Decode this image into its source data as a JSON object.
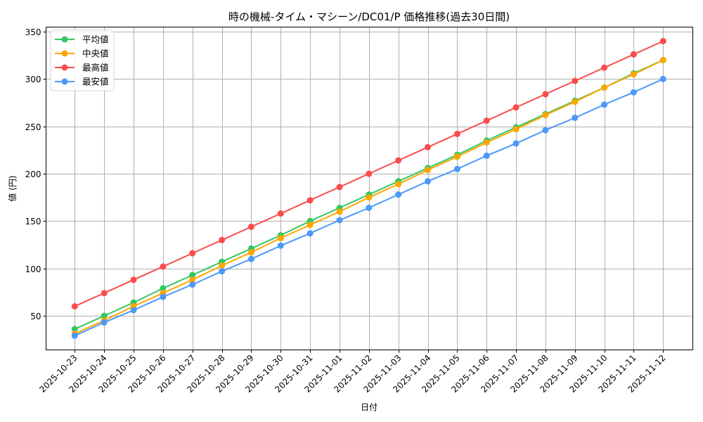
{
  "chart_data": {
    "type": "line",
    "title": "時の機械-タイム・マシーン/DC01/P 価格推移(過去30日間)",
    "xlabel": "日付",
    "ylabel": "値 (円)",
    "ylim": [
      13,
      356
    ],
    "yticks": [
      50,
      100,
      150,
      200,
      250,
      300,
      350
    ],
    "grid": true,
    "legend_position": "upper left",
    "categories": [
      "2025-10-23",
      "2025-10-24",
      "2025-10-25",
      "2025-10-26",
      "2025-10-27",
      "2025-10-28",
      "2025-10-29",
      "2025-10-30",
      "2025-10-31",
      "2025-11-01",
      "2025-11-02",
      "2025-11-03",
      "2025-11-04",
      "2025-11-05",
      "2025-11-06",
      "2025-11-07",
      "2025-11-08",
      "2025-11-09",
      "2025-11-10",
      "2025-11-11",
      "2025-11-12"
    ],
    "series": [
      {
        "name": "平均値",
        "color": "#33c760",
        "values": [
          36,
          50,
          64,
          79,
          93,
          107,
          121,
          135,
          150,
          164,
          178,
          192,
          206,
          220,
          235,
          249,
          263,
          277,
          291,
          306,
          320
        ]
      },
      {
        "name": "中央値",
        "color": "#ffa500",
        "values": [
          31,
          45,
          60,
          74,
          88,
          103,
          117,
          132,
          146,
          160,
          175,
          189,
          204,
          218,
          233,
          247,
          262,
          276,
          291,
          305,
          320
        ]
      },
      {
        "name": "最高値",
        "color": "#f94c4c",
        "values": [
          60,
          74,
          88,
          102,
          116,
          130,
          144,
          158,
          172,
          186,
          200,
          214,
          228,
          242,
          256,
          270,
          284,
          298,
          312,
          326,
          340
        ]
      },
      {
        "name": "最安値",
        "color": "#4c99f9",
        "values": [
          29,
          43,
          56,
          70,
          83,
          97,
          110,
          124,
          137,
          151,
          164,
          178,
          192,
          205,
          219,
          232,
          246,
          259,
          273,
          286,
          300
        ]
      }
    ]
  },
  "legend": {
    "items": [
      {
        "label": "平均値",
        "color": "#33c760"
      },
      {
        "label": "中央値",
        "color": "#ffa500"
      },
      {
        "label": "最高値",
        "color": "#f94c4c"
      },
      {
        "label": "最安値",
        "color": "#4c99f9"
      }
    ]
  }
}
